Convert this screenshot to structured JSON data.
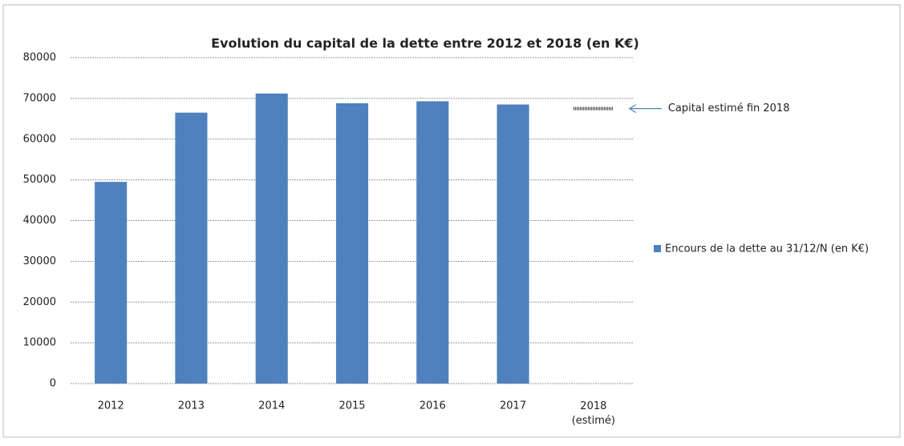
{
  "chart_data": {
    "type": "bar",
    "title": "Evolution du capital de la dette entre 2012 et 2018 (en K€)",
    "categories": [
      "2012",
      "2013",
      "2014",
      "2015",
      "2016",
      "2017",
      "2018\n(estimé)"
    ],
    "series": [
      {
        "name": "Encours de la dette au 31/12/N (en K€)",
        "color": "#4f81bd",
        "values": [
          49500,
          66500,
          71200,
          68800,
          69300,
          68500,
          null
        ]
      }
    ],
    "estimate": {
      "category": 6,
      "value": 67500,
      "label": "Capital estimé fin 2018"
    },
    "ylim": [
      0,
      80000
    ],
    "yticks": [
      0,
      10000,
      20000,
      30000,
      40000,
      50000,
      60000,
      70000,
      80000
    ],
    "grid": true,
    "legend": "right"
  }
}
